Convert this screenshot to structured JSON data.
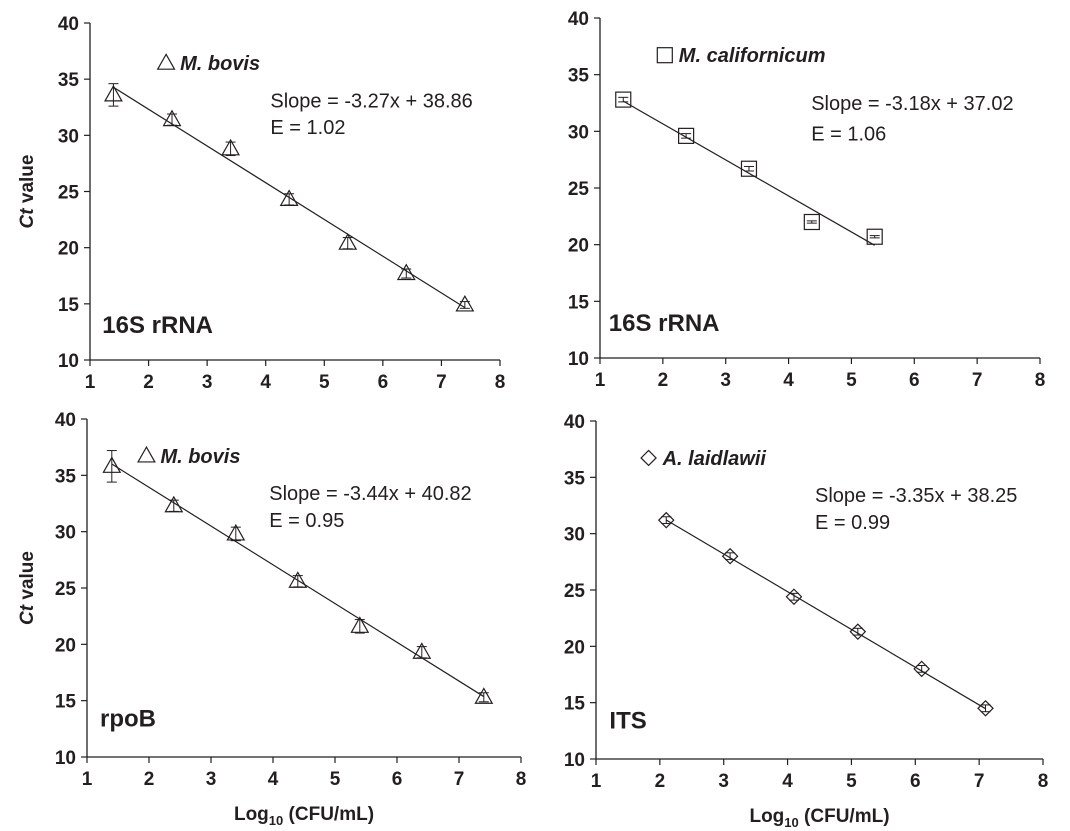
{
  "chart_data": [
    {
      "type": "scatter",
      "marker": "triangle",
      "species": "M. bovis",
      "equation": "Slope = -3.27x + 38.86",
      "efficiency": "E = 1.02",
      "gene": "16S rRNA",
      "ylabel_italic": "Ct",
      "ylabel_rest": " value",
      "xlabel_main": "",
      "xlabel_sub": "",
      "xlabel_tail": "",
      "xlim": [
        1,
        8
      ],
      "ylim": [
        10,
        40
      ],
      "xticks": [
        1,
        2,
        3,
        4,
        5,
        6,
        7,
        8
      ],
      "yticks": [
        10,
        15,
        20,
        25,
        30,
        35,
        40
      ],
      "fit": {
        "slope": -3.27,
        "intercept": 38.86
      },
      "series": [
        {
          "x": [
            1.4,
            2.4,
            3.4,
            4.4,
            5.4,
            6.4,
            7.4
          ],
          "y": [
            33.6,
            31.4,
            28.8,
            24.3,
            20.4,
            17.7,
            14.9
          ],
          "err": [
            1.0,
            0.5,
            0.6,
            0.5,
            0.5,
            0.4,
            0.3
          ]
        }
      ]
    },
    {
      "type": "scatter",
      "marker": "square",
      "species": "M. californicum",
      "equation": "Slope = -3.18x + 37.02",
      "efficiency": "E = 1.06",
      "gene": "16S rRNA",
      "ylabel_italic": "",
      "ylabel_rest": "",
      "xlabel_main": "",
      "xlabel_sub": "",
      "xlabel_tail": "",
      "xlim": [
        1,
        8
      ],
      "ylim": [
        10,
        40
      ],
      "xticks": [
        1,
        2,
        3,
        4,
        5,
        6,
        7,
        8
      ],
      "yticks": [
        10,
        15,
        20,
        25,
        30,
        35,
        40
      ],
      "fit": {
        "slope": -3.18,
        "intercept": 37.02
      },
      "fit_range": [
        1.37,
        5.37
      ],
      "series": [
        {
          "x": [
            1.37,
            2.37,
            3.37,
            4.37,
            5.37
          ],
          "y": [
            32.8,
            29.6,
            26.7,
            22.0,
            20.7
          ],
          "err": [
            0.2,
            0.2,
            0.2,
            0.1,
            0.1
          ]
        }
      ]
    },
    {
      "type": "scatter",
      "marker": "triangle",
      "species": "M. bovis",
      "equation": "Slope = -3.44x + 40.82",
      "efficiency": "E = 0.95",
      "gene": "rpoB",
      "ylabel_italic": "Ct",
      "ylabel_rest": " value",
      "xlabel_main": "Log",
      "xlabel_sub": "10",
      "xlabel_tail": " (CFU/mL)",
      "xlim": [
        1,
        8
      ],
      "ylim": [
        10,
        40
      ],
      "xticks": [
        1,
        2,
        3,
        4,
        5,
        6,
        7,
        8
      ],
      "yticks": [
        10,
        15,
        20,
        25,
        30,
        35,
        40
      ],
      "fit": {
        "slope": -3.44,
        "intercept": 40.82
      },
      "series": [
        {
          "x": [
            1.4,
            2.4,
            3.4,
            4.4,
            5.4,
            6.4,
            7.4
          ],
          "y": [
            35.8,
            32.3,
            29.8,
            25.6,
            21.6,
            19.3,
            15.3
          ],
          "err": [
            1.4,
            0.5,
            0.6,
            0.5,
            0.6,
            0.5,
            0.4
          ]
        }
      ]
    },
    {
      "type": "scatter",
      "marker": "diamond",
      "species": "A. laidlawii",
      "equation": "Slope = -3.35x + 38.25",
      "efficiency": "E = 0.99",
      "gene": "ITS",
      "ylabel_italic": "",
      "ylabel_rest": "",
      "xlabel_main": "Log",
      "xlabel_sub": "10",
      "xlabel_tail": " (CFU/mL)",
      "xlim": [
        1,
        8
      ],
      "ylim": [
        10,
        40
      ],
      "xticks": [
        1,
        2,
        3,
        4,
        5,
        6,
        7,
        8
      ],
      "yticks": [
        10,
        15,
        20,
        25,
        30,
        35,
        40
      ],
      "fit": {
        "slope": -3.35,
        "intercept": 38.25
      },
      "series": [
        {
          "x": [
            2.1,
            3.1,
            4.1,
            5.1,
            6.1,
            7.1
          ],
          "y": [
            31.2,
            28.0,
            24.4,
            21.3,
            18.0,
            14.5
          ],
          "err": [
            0.3,
            0.3,
            0.3,
            0.3,
            0.3,
            0.3
          ]
        }
      ]
    }
  ]
}
